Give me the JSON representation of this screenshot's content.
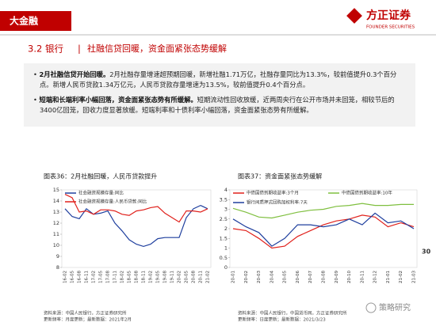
{
  "header": {
    "section": "大金融",
    "logo_cn": "方正证券",
    "logo_en": "FOUNDER SECURITIES"
  },
  "title": {
    "number": "3.2 银行",
    "separator": "|",
    "text": "社融信贷回暖，资金面紧张态势缓解"
  },
  "bullets": [
    {
      "lead": "2月社融信贷开始回暖。",
      "body": "2月社融存量增速超预期回暖，新增社融1.71万亿，社融存量同比为13.3%，较前值提升0.3个百分点。新增人民币贷款1.34万亿元，人民币贷款存量增速为13.5%，较前值提升0.4个百分点。"
    },
    {
      "lead": "短端和长端利率小幅回落，资金面紧张态势有所缓解。",
      "body": "短期流动性回收放缓，近两周央行在公开市场并未回笼，相较节后的3400亿回笼，回收力度显著放缓。短端利率和十债利率小幅回落，资金面紧张态势有所缓解。"
    }
  ],
  "chart_data": [
    {
      "type": "line",
      "title": "图表36：2月社融回暖，人民币贷款提升",
      "source": "资料来源：中国人民银行，方正证券研究所",
      "update": "更新频率：月度更新；最新数据：2021年2月",
      "categories": [
        "16-02",
        "16-05",
        "16-08",
        "16-11",
        "17-02",
        "17-05",
        "17-08",
        "17-11",
        "18-02",
        "18-05",
        "18-08",
        "18-11",
        "19-02",
        "19-05",
        "19-08",
        "19-11",
        "20-02",
        "20-05",
        "20-08",
        "20-11",
        "21-02"
      ],
      "series": [
        {
          "name": "社会融资规模存量:同比",
          "color": "#1f3f9e",
          "values": [
            13.3,
            12.6,
            12.4,
            13.3,
            12.8,
            12.9,
            13.1,
            12.0,
            11.3,
            10.5,
            10.1,
            9.9,
            10.1,
            10.6,
            10.7,
            10.7,
            10.7,
            12.5,
            13.3,
            13.6,
            13.3
          ]
        },
        {
          "name": "社会融资规模存量:人民币贷款:同比",
          "color": "#e0201b",
          "values": [
            14.6,
            14.3,
            13.0,
            13.1,
            12.8,
            13.2,
            13.2,
            13.1,
            12.8,
            12.7,
            13.1,
            13.2,
            13.4,
            13.5,
            12.9,
            12.5,
            12.1,
            13.1,
            13.1,
            13.0,
            13.3
          ]
        }
      ],
      "ylim": [
        8,
        15
      ],
      "yticks": [
        8,
        9,
        10,
        11,
        12,
        13,
        14,
        15
      ]
    },
    {
      "type": "line",
      "title": "图表37：资金面紧张态势缓解",
      "source": "资料来源：中国人民银行，中国货币网，方正证券研究所",
      "update": "更新频率：日度更新；最新数据：2021/3/23",
      "categories": [
        "20-01",
        "20-02",
        "20-03",
        "20-04",
        "20-05",
        "20-06",
        "20-07",
        "20-08",
        "20-09",
        "20-10",
        "20-11",
        "20-12",
        "21-01",
        "21-02",
        "21-03"
      ],
      "series": [
        {
          "name": "中债国债到期收益率:3个月",
          "color": "#e0201b",
          "values": [
            2.0,
            1.9,
            1.5,
            1.0,
            1.1,
            1.6,
            1.9,
            2.2,
            2.4,
            2.5,
            2.7,
            2.6,
            2.1,
            2.3,
            2.1
          ]
        },
        {
          "name": "中债国债到期收益率:10年",
          "color": "#7fbf3f",
          "values": [
            3.05,
            2.85,
            2.6,
            2.55,
            2.7,
            2.85,
            2.95,
            3.0,
            3.15,
            3.2,
            3.3,
            3.2,
            3.2,
            3.25,
            3.25
          ]
        },
        {
          "name": "银行间质押式回购加权利率:7天",
          "color": "#1f3f9e",
          "values": [
            2.5,
            2.1,
            1.8,
            1.1,
            1.5,
            2.2,
            2.2,
            2.1,
            2.2,
            2.5,
            2.2,
            2.8,
            2.3,
            2.4,
            2.0
          ]
        }
      ],
      "ylim": [
        0,
        4
      ],
      "yticks": [
        0,
        0.5,
        1,
        1.5,
        2,
        2.5,
        3,
        3.5,
        4
      ]
    }
  ],
  "page_number": "30",
  "watermark": "策略研究"
}
